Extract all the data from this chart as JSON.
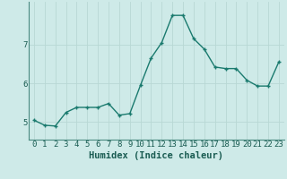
{
  "x": [
    0,
    1,
    2,
    3,
    4,
    5,
    6,
    7,
    8,
    9,
    10,
    11,
    12,
    13,
    14,
    15,
    16,
    17,
    18,
    19,
    20,
    21,
    22,
    23
  ],
  "y": [
    5.05,
    4.92,
    4.9,
    5.25,
    5.38,
    5.38,
    5.38,
    5.48,
    5.18,
    5.22,
    5.95,
    6.65,
    7.05,
    7.75,
    7.75,
    7.15,
    6.88,
    6.42,
    6.38,
    6.38,
    6.08,
    5.93,
    5.93,
    6.55
  ],
  "line_color": "#1a7a6e",
  "marker": "+",
  "markersize": 3.5,
  "linewidth": 1.0,
  "markeredgewidth": 1.0,
  "xlabel": "Humidex (Indice chaleur)",
  "xlim": [
    -0.5,
    23.5
  ],
  "ylim": [
    4.55,
    8.1
  ],
  "yticks": [
    5,
    6,
    7
  ],
  "xticks": [
    0,
    1,
    2,
    3,
    4,
    5,
    6,
    7,
    8,
    9,
    10,
    11,
    12,
    13,
    14,
    15,
    16,
    17,
    18,
    19,
    20,
    21,
    22,
    23
  ],
  "bg_color": "#ceeae8",
  "grid_color": "#b8d8d4",
  "fig_bg": "#ceeae8",
  "xlabel_fontsize": 7.5,
  "tick_fontsize": 6.5
}
